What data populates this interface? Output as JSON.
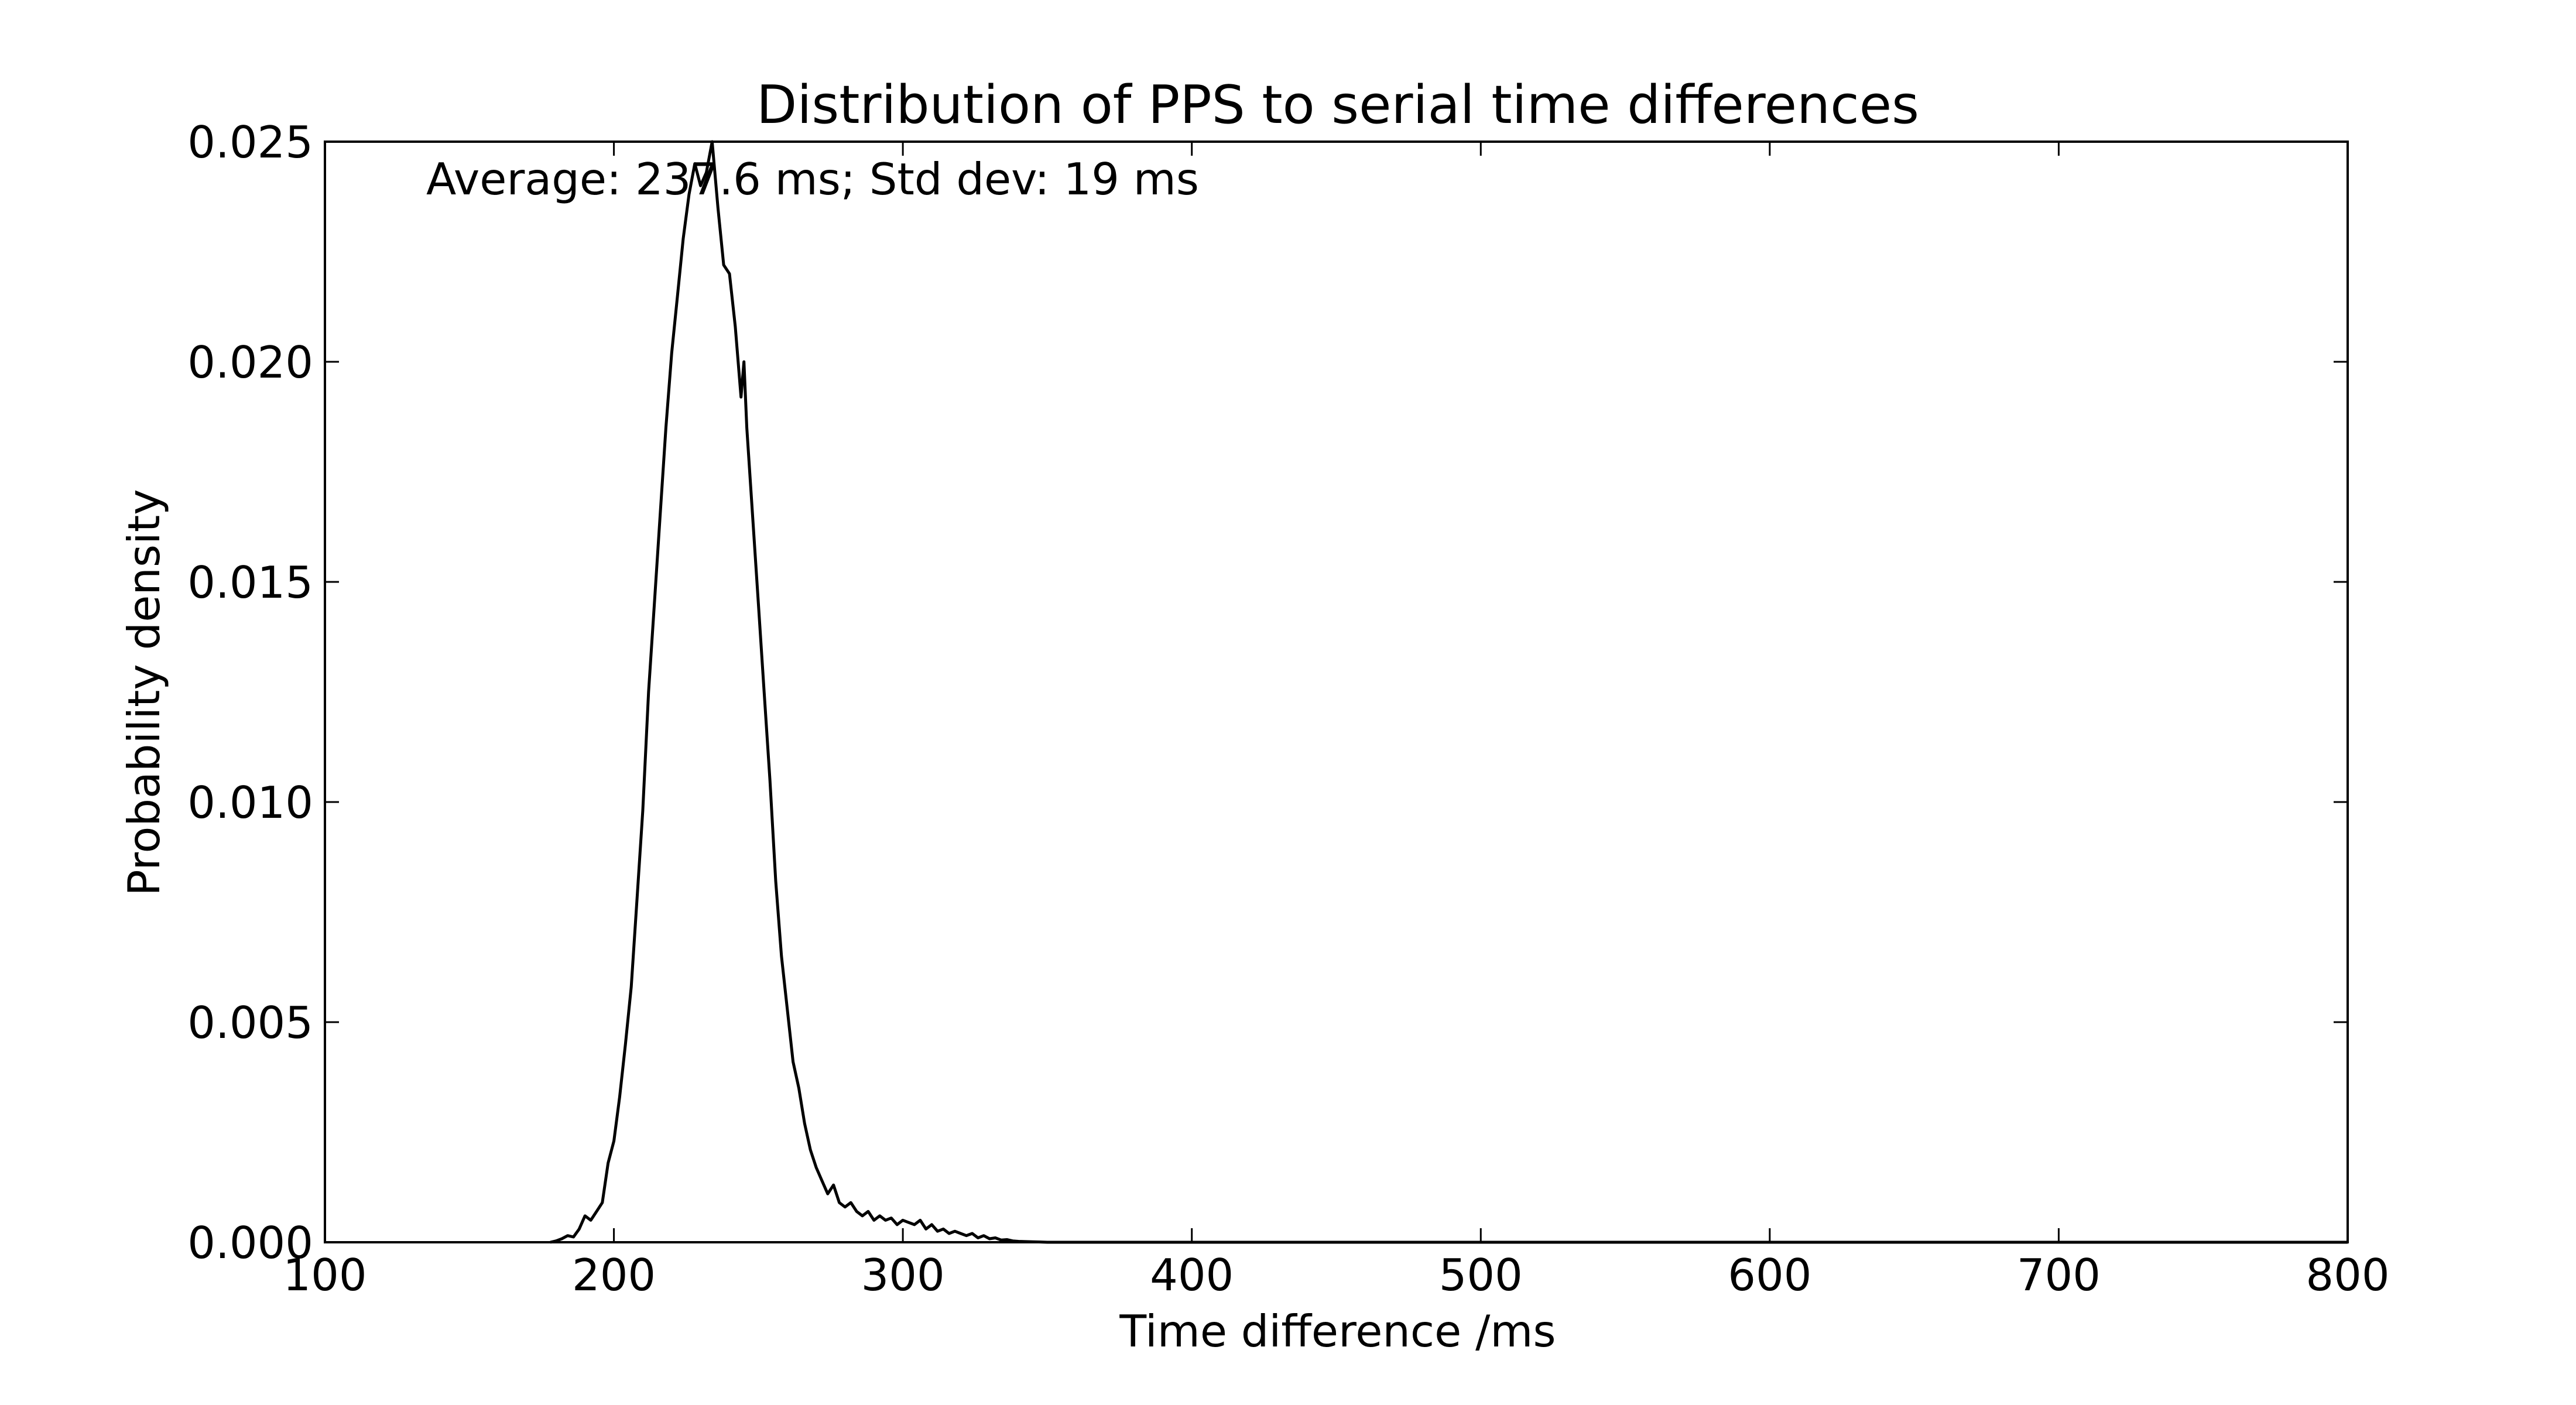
{
  "chart_data": {
    "type": "line",
    "title": "Distribution of PPS to serial time differences",
    "xlabel": "Time difference /ms",
    "ylabel": "Probability density",
    "xlim": [
      100,
      800
    ],
    "ylim": [
      0,
      0.025
    ],
    "xticks": [
      100,
      200,
      300,
      400,
      500,
      600,
      700,
      800
    ],
    "xtick_labels": [
      "100",
      "200",
      "300",
      "400",
      "500",
      "600",
      "700",
      "800"
    ],
    "yticks": [
      0,
      0.005,
      0.01,
      0.015,
      0.02,
      0.025
    ],
    "ytick_labels": [
      "0.000",
      "0.005",
      "0.010",
      "0.015",
      "0.020",
      "0.025"
    ],
    "grid": false,
    "legend": "none",
    "annotation": "Average: 237.6 ms;  Std dev: 19 ms",
    "series": [
      {
        "color": "#000000",
        "x": [
          178,
          180,
          182,
          184,
          186,
          188,
          190,
          192,
          194,
          196,
          198,
          200,
          202,
          204,
          206,
          208,
          210,
          212,
          214,
          216,
          218,
          220,
          222,
          224,
          226,
          228,
          230,
          232,
          234,
          236,
          238,
          240,
          242,
          244,
          245,
          246,
          248,
          250,
          252,
          254,
          256,
          258,
          260,
          262,
          264,
          266,
          268,
          270,
          272,
          274,
          276,
          278,
          280,
          282,
          284,
          286,
          288,
          290,
          292,
          294,
          296,
          298,
          300,
          302,
          304,
          306,
          308,
          310,
          312,
          314,
          316,
          318,
          320,
          322,
          324,
          326,
          328,
          330,
          332,
          334,
          336,
          338,
          340,
          345,
          350,
          360,
          380,
          400,
          500,
          600,
          700,
          800
        ],
        "y": [
          0.0,
          3e-05,
          8e-05,
          0.00015,
          0.00012,
          0.0003,
          0.0006,
          0.0005,
          0.0007,
          0.0009,
          0.0018,
          0.0023,
          0.0033,
          0.0045,
          0.0058,
          0.0078,
          0.0098,
          0.0125,
          0.0145,
          0.0165,
          0.0185,
          0.0202,
          0.0215,
          0.0228,
          0.0238,
          0.0245,
          0.024,
          0.0243,
          0.025,
          0.0235,
          0.0222,
          0.022,
          0.0208,
          0.0192,
          0.02,
          0.0185,
          0.0165,
          0.0145,
          0.0125,
          0.0105,
          0.0082,
          0.0065,
          0.0053,
          0.0041,
          0.0035,
          0.0027,
          0.0021,
          0.0017,
          0.0014,
          0.0011,
          0.0013,
          0.0009,
          0.0008,
          0.0009,
          0.0007,
          0.0006,
          0.0007,
          0.0005,
          0.0006,
          0.0005,
          0.00055,
          0.0004,
          0.0005,
          0.00045,
          0.0004,
          0.0005,
          0.0003,
          0.0004,
          0.00025,
          0.0003,
          0.0002,
          0.00025,
          0.0002,
          0.00015,
          0.0002,
          0.0001,
          0.00015,
          8e-05,
          0.0001,
          5e-05,
          6e-05,
          3e-05,
          2e-05,
          1e-05,
          0.0,
          0.0,
          0.0,
          0.0,
          0.0,
          0.0,
          0.0,
          0.0
        ]
      }
    ]
  }
}
